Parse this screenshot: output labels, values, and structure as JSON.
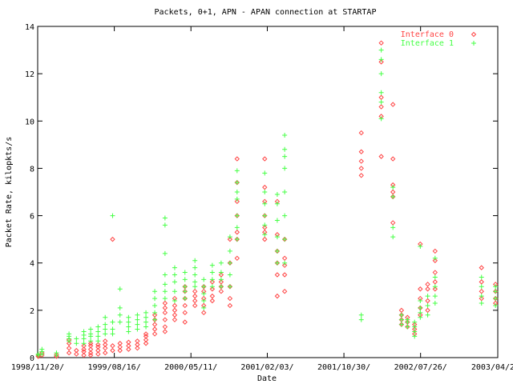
{
  "chart_data": {
    "type": "scatter",
    "title": "Packets, 0+1, APN - APAN connection at STARTAP",
    "xlabel": "Date",
    "ylabel": "Packet Rate, kilopkts/s",
    "xlim": [
      "1998-11-20",
      "2003-04-23"
    ],
    "ylim": [
      0,
      14
    ],
    "y_ticks": [
      0,
      2,
      4,
      6,
      8,
      10,
      12,
      14
    ],
    "x_ticks": [
      {
        "label": "1998/11/20/",
        "date": "1998-11-20"
      },
      {
        "label": "1999/08/16/",
        "date": "1999-08-16"
      },
      {
        "label": "2000/05/11/",
        "date": "2000-05-11"
      },
      {
        "label": "2001/02/03/",
        "date": "2001-02-03"
      },
      {
        "label": "2001/10/30/",
        "date": "2001-10-30"
      },
      {
        "label": "2002/07/26/",
        "date": "2002-07-26"
      },
      {
        "label": "2003/04/23/",
        "date": "2003-04-23"
      }
    ],
    "grid": false,
    "legend": "top-right",
    "series": [
      {
        "name": "Interface 0",
        "marker": "diamond",
        "color": "#ff4444",
        "points": [
          {
            "x": "1998-11-22",
            "y": [
              0.05,
              0.1
            ]
          },
          {
            "x": "1998-12-05",
            "y": [
              0.1,
              0.2
            ]
          },
          {
            "x": "1999-01-25",
            "y": [
              0.05,
              0.12
            ]
          },
          {
            "x": "1999-03-10",
            "y": [
              0.2,
              0.4,
              0.6,
              0.75
            ]
          },
          {
            "x": "1999-04-05",
            "y": [
              0.15,
              0.3
            ]
          },
          {
            "x": "1999-05-01",
            "y": [
              0.1,
              0.25,
              0.35,
              0.5
            ]
          },
          {
            "x": "1999-05-25",
            "y": [
              0.1,
              0.2,
              0.35,
              0.5,
              0.6
            ]
          },
          {
            "x": "1999-06-20",
            "y": [
              0.15,
              0.3,
              0.45,
              0.55
            ]
          },
          {
            "x": "1999-07-15",
            "y": [
              0.2,
              0.4,
              0.55,
              0.7
            ]
          },
          {
            "x": "1999-08-10",
            "y": [
              0.3,
              0.5,
              5.0
            ]
          },
          {
            "x": "1999-09-05",
            "y": [
              0.3,
              0.45,
              0.6
            ]
          },
          {
            "x": "1999-10-05",
            "y": [
              0.35,
              0.5,
              0.65
            ]
          },
          {
            "x": "1999-11-05",
            "y": [
              0.4,
              0.55,
              0.7
            ]
          },
          {
            "x": "1999-12-05",
            "y": [
              0.6,
              0.75,
              0.9,
              1.0
            ]
          },
          {
            "x": "2000-01-05",
            "y": [
              1.0,
              1.2,
              1.4,
              1.6,
              1.8
            ]
          },
          {
            "x": "2000-02-10",
            "y": [
              1.1,
              1.3,
              1.6,
              1.9,
              2.1,
              2.3
            ]
          },
          {
            "x": "2000-03-15",
            "y": [
              1.6,
              1.8,
              2.0,
              2.2,
              2.5
            ]
          },
          {
            "x": "2000-04-20",
            "y": [
              1.5,
              1.9,
              2.2,
              2.5,
              2.8,
              3.0
            ]
          },
          {
            "x": "2000-05-25",
            "y": [
              2.2,
              2.4,
              2.6,
              2.8
            ]
          },
          {
            "x": "2000-06-25",
            "y": [
              1.9,
              2.2,
              2.5,
              2.8,
              3.0
            ]
          },
          {
            "x": "2000-07-25",
            "y": [
              2.4,
              2.6,
              2.9,
              3.2
            ]
          },
          {
            "x": "2000-08-25",
            "y": [
              2.8,
              3.0,
              3.2,
              3.5
            ]
          },
          {
            "x": "2000-09-25",
            "y": [
              2.2,
              2.5,
              3.0,
              4.0,
              5.0
            ]
          },
          {
            "x": "2000-10-20",
            "y": [
              4.2,
              5.0,
              5.3,
              6.0,
              6.6,
              7.4,
              8.4
            ]
          },
          {
            "x": "2001-01-25",
            "y": [
              5.0,
              5.3,
              5.5,
              6.0,
              6.6,
              7.2,
              8.4
            ]
          },
          {
            "x": "2001-03-10",
            "y": [
              2.6,
              3.5,
              4.0,
              4.5,
              5.2,
              6.6
            ]
          },
          {
            "x": "2001-04-05",
            "y": [
              2.8,
              3.5,
              3.9,
              4.2,
              5.0
            ]
          },
          {
            "x": "2001-12-30",
            "y": [
              7.7,
              8.0,
              8.3,
              8.7,
              9.5
            ]
          },
          {
            "x": "2002-03-10",
            "y": [
              8.5,
              10.2,
              10.6,
              11.0,
              12.5,
              13.3
            ]
          },
          {
            "x": "2002-04-20",
            "y": [
              5.7,
              6.8,
              7.0,
              7.3,
              8.4,
              10.7
            ]
          },
          {
            "x": "2002-05-20",
            "y": [
              1.4,
              1.6,
              1.8,
              2.0
            ]
          },
          {
            "x": "2002-06-10",
            "y": [
              1.3,
              1.5,
              1.7
            ]
          },
          {
            "x": "2002-07-05",
            "y": [
              1.0,
              1.2,
              1.4
            ]
          },
          {
            "x": "2002-07-25",
            "y": [
              1.8,
              2.1,
              2.5,
              2.9,
              4.8
            ]
          },
          {
            "x": "2002-08-20",
            "y": [
              2.0,
              2.4,
              2.9,
              3.1
            ]
          },
          {
            "x": "2002-09-15",
            "y": [
              2.9,
              3.2,
              3.6,
              4.1,
              4.5
            ]
          },
          {
            "x": "2003-02-25",
            "y": [
              2.5,
              2.8,
              3.2,
              3.8
            ]
          },
          {
            "x": "2003-04-15",
            "y": [
              2.3,
              2.5,
              2.8,
              3.1
            ]
          }
        ]
      },
      {
        "name": "Interface 1",
        "marker": "plus",
        "color": "#44ff44",
        "points": [
          {
            "x": "1998-11-22",
            "y": [
              0.1,
              0.15
            ]
          },
          {
            "x": "1998-12-05",
            "y": [
              0.15,
              0.25,
              0.35
            ]
          },
          {
            "x": "1999-01-25",
            "y": [
              0.1,
              0.2
            ]
          },
          {
            "x": "1999-03-10",
            "y": [
              0.7,
              0.8,
              0.9,
              1.0
            ]
          },
          {
            "x": "1999-04-05",
            "y": [
              0.6,
              0.8
            ]
          },
          {
            "x": "1999-05-01",
            "y": [
              0.6,
              0.8,
              0.95,
              1.1
            ]
          },
          {
            "x": "1999-05-25",
            "y": [
              0.7,
              0.9,
              1.0,
              1.2
            ]
          },
          {
            "x": "1999-06-20",
            "y": [
              0.7,
              0.9,
              1.1,
              1.3
            ]
          },
          {
            "x": "1999-07-15",
            "y": [
              1.0,
              1.2,
              1.4,
              1.7
            ]
          },
          {
            "x": "1999-08-10",
            "y": [
              1.0,
              1.2,
              1.5,
              6.0
            ]
          },
          {
            "x": "1999-09-05",
            "y": [
              1.5,
              1.8,
              2.1,
              2.9
            ]
          },
          {
            "x": "1999-10-05",
            "y": [
              1.1,
              1.3,
              1.5,
              1.7
            ]
          },
          {
            "x": "1999-11-05",
            "y": [
              1.2,
              1.4,
              1.6,
              1.8
            ]
          },
          {
            "x": "1999-12-05",
            "y": [
              1.3,
              1.5,
              1.7,
              1.9
            ]
          },
          {
            "x": "2000-01-05",
            "y": [
              1.6,
              1.9,
              2.2,
              2.5,
              2.8
            ]
          },
          {
            "x": "2000-02-10",
            "y": [
              2.5,
              2.8,
              3.1,
              3.5,
              4.4,
              5.6,
              5.9
            ]
          },
          {
            "x": "2000-03-15",
            "y": [
              2.4,
              2.8,
              3.2,
              3.5,
              3.8
            ]
          },
          {
            "x": "2000-04-20",
            "y": [
              2.5,
              2.8,
              3.0,
              3.3,
              3.6
            ]
          },
          {
            "x": "2000-05-25",
            "y": [
              3.0,
              3.2,
              3.5,
              3.8,
              4.1
            ]
          },
          {
            "x": "2000-06-25",
            "y": [
              2.1,
              2.4,
              2.7,
              3.0,
              3.3
            ]
          },
          {
            "x": "2000-07-25",
            "y": [
              3.0,
              3.3,
              3.6,
              3.9
            ]
          },
          {
            "x": "2000-08-25",
            "y": [
              3.0,
              3.3,
              3.6,
              4.0
            ]
          },
          {
            "x": "2000-09-25",
            "y": [
              3.0,
              3.5,
              4.0,
              4.5,
              5.1
            ]
          },
          {
            "x": "2000-10-20",
            "y": [
              5.0,
              5.5,
              6.0,
              6.7,
              7.0,
              7.4,
              7.9
            ]
          },
          {
            "x": "2001-01-25",
            "y": [
              5.2,
              5.6,
              6.0,
              6.5,
              7.0,
              7.8
            ]
          },
          {
            "x": "2001-03-10",
            "y": [
              4.0,
              4.5,
              5.1,
              5.8,
              6.5,
              6.9
            ]
          },
          {
            "x": "2001-04-05",
            "y": [
              4.0,
              5.0,
              6.0,
              7.0,
              8.0,
              8.5,
              8.8,
              9.4
            ]
          },
          {
            "x": "2001-12-30",
            "y": [
              1.6,
              1.8
            ]
          },
          {
            "x": "2002-03-10",
            "y": [
              10.1,
              10.8,
              11.2,
              12.0,
              12.6,
              13.0
            ]
          },
          {
            "x": "2002-04-20",
            "y": [
              5.1,
              5.5,
              6.8,
              7.2
            ]
          },
          {
            "x": "2002-05-20",
            "y": [
              1.4,
              1.6,
              1.8
            ]
          },
          {
            "x": "2002-06-10",
            "y": [
              1.3,
              1.5,
              1.6
            ]
          },
          {
            "x": "2002-07-05",
            "y": [
              0.9,
              1.1,
              1.3,
              1.5
            ]
          },
          {
            "x": "2002-07-25",
            "y": [
              1.7,
              1.9,
              2.1,
              2.4,
              4.7
            ]
          },
          {
            "x": "2002-08-20",
            "y": [
              1.8,
              2.2,
              2.6
            ]
          },
          {
            "x": "2002-09-15",
            "y": [
              2.3,
              2.6,
              3.0,
              3.4,
              4.2
            ]
          },
          {
            "x": "2003-02-25",
            "y": [
              2.3,
              2.6,
              3.0,
              3.4
            ]
          },
          {
            "x": "2003-04-15",
            "y": [
              2.2,
              2.5,
              2.8,
              3.0
            ]
          }
        ]
      }
    ]
  }
}
